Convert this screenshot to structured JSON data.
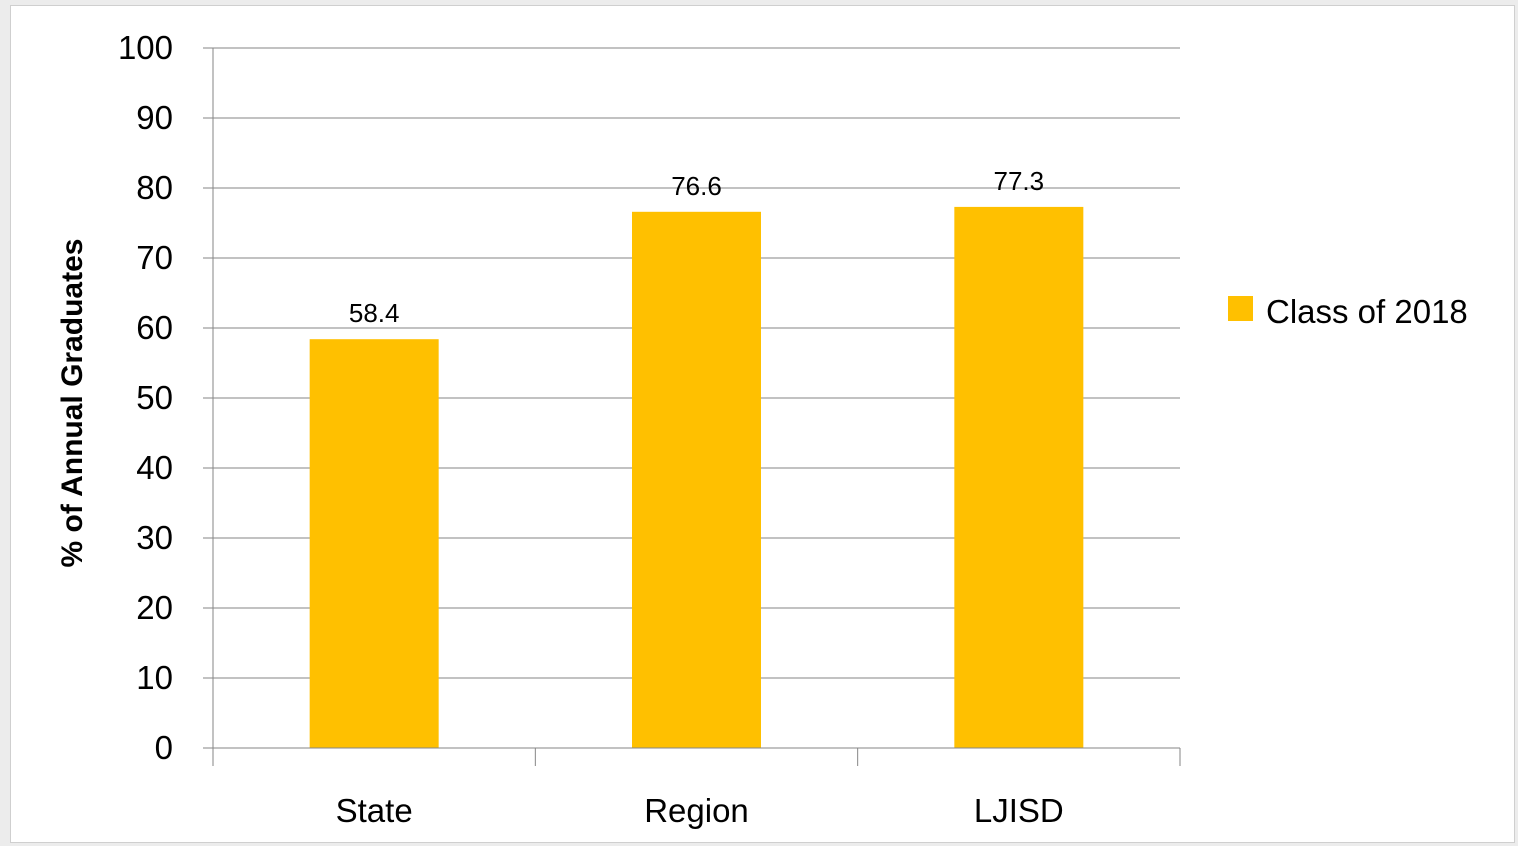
{
  "chart_data": {
    "type": "bar",
    "categories": [
      "State",
      "Region",
      "LJISD"
    ],
    "series": [
      {
        "name": "Class of 2018",
        "values": [
          58.4,
          76.6,
          77.3
        ],
        "color": "#FFC000"
      }
    ],
    "data_labels": [
      "58.4",
      "76.6",
      "77.3"
    ],
    "ylabel": "% of Annual Graduates",
    "xlabel": "",
    "ylim": [
      0,
      100
    ],
    "yticks": [
      "0",
      "10",
      "20",
      "30",
      "40",
      "50",
      "60",
      "70",
      "80",
      "90",
      "100"
    ],
    "grid": true,
    "legend_position": "right"
  }
}
